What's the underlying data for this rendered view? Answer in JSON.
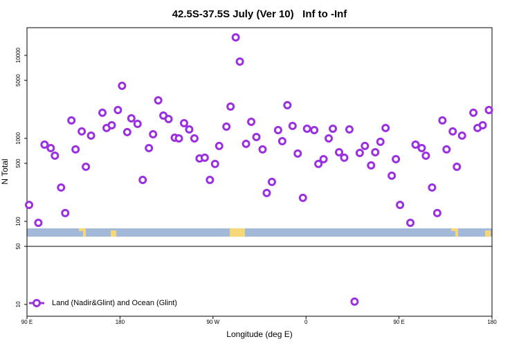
{
  "chart_data": {
    "type": "scatter",
    "title": "42.5S-37.5S July (Ver 10)   Inf to -Inf",
    "xlabel": "Longitude (deg E)",
    "ylabel": "N Total",
    "log_y": true,
    "color": "#9b30e0",
    "xlim": [
      90,
      540
    ],
    "ylim": [
      7.2,
      21544
    ],
    "xticks": [
      {
        "value": 90,
        "label": "90 E"
      },
      {
        "value": 180,
        "label": "180"
      },
      {
        "value": 270,
        "label": "90 W"
      },
      {
        "value": 360,
        "label": "0"
      },
      {
        "value": 450,
        "label": "90 E"
      },
      {
        "value": 540,
        "label": "180"
      }
    ],
    "yticks": [
      10,
      50,
      100,
      500,
      1000,
      5000,
      10000
    ],
    "series": [
      {
        "name": "Land (Nadir&Glint) and Ocean (Glint)",
        "color": "#9b30e0",
        "x": [
          92,
          101,
          107,
          113,
          117,
          123,
          127,
          133,
          137,
          143,
          147,
          152,
          163,
          167,
          172,
          178,
          182,
          187,
          191,
          197,
          202,
          208,
          212,
          217,
          222,
          227,
          233,
          237,
          242,
          247,
          252,
          257,
          262,
          267,
          272,
          276,
          283,
          287,
          292,
          296,
          302,
          307,
          312,
          318,
          322,
          327,
          333,
          337,
          342,
          347,
          352,
          357,
          361,
          368,
          372,
          377,
          382,
          386,
          392,
          397,
          402,
          407,
          412,
          417,
          423,
          427,
          432,
          437,
          443,
          447,
          451,
          461,
          466,
          472,
          476,
          482,
          487,
          492,
          496,
          502,
          506,
          511,
          522,
          526,
          531,
          537
        ],
        "values": [
          158,
          96,
          841,
          764,
          619,
          256,
          126,
          1647,
          736,
          1212,
          455,
          1080,
          2035,
          1334,
          1440,
          2197,
          4300,
          1189,
          1744,
          1496,
          316,
          764,
          1122,
          2873,
          1884,
          1711,
          1019,
          1000,
          1525,
          1283,
          1000,
          573,
          585,
          316,
          492,
          810,
          1385,
          2417,
          16480,
          8414,
          858,
          1585,
          1039,
          736,
          220,
          299,
          1259,
          926,
          2512,
          1413,
          656,
          192,
          1308,
          1259,
          492,
          562,
          1000,
          1308,
          681,
          585,
          1283,
          10.8,
          668,
          810,
          473,
          681,
          909,
          1334,
          355,
          562,
          158,
          96,
          841,
          764,
          619,
          256,
          126,
          1647,
          736,
          1212,
          455,
          1080,
          2035,
          1334,
          1440,
          2197
        ]
      }
    ]
  }
}
